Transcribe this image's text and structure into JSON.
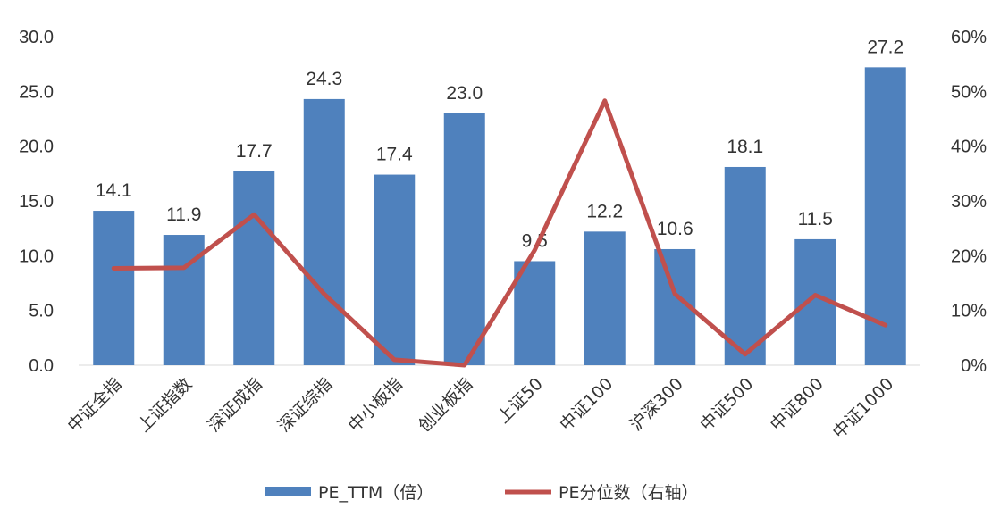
{
  "chart_data": {
    "type": "bar+line",
    "categories": [
      "中证全指",
      "上证指数",
      "深证成指",
      "深证综指",
      "中小板指",
      "创业板指",
      "上证50",
      "中证100",
      "沪深300",
      "中证500",
      "中证800",
      "中证1000"
    ],
    "series": [
      {
        "name": "PE_TTM（倍）",
        "type": "bar",
        "axis": "left",
        "color": "#4F81BD",
        "values": [
          14.1,
          11.9,
          17.7,
          24.3,
          17.4,
          23.0,
          9.5,
          12.2,
          10.6,
          18.1,
          11.5,
          27.2
        ],
        "labels": [
          "14.1",
          "11.9",
          "17.7",
          "24.3",
          "17.4",
          "23.0",
          "9.5",
          "12.2",
          "10.6",
          "18.1",
          "11.5",
          "27.2"
        ]
      },
      {
        "name": "PE分位数（右轴）",
        "type": "line",
        "axis": "right",
        "color": "#C0504D",
        "values": [
          0.177,
          0.178,
          0.275,
          0.13,
          0.01,
          0.0,
          0.21,
          0.483,
          0.13,
          0.02,
          0.128,
          0.073
        ]
      }
    ],
    "y_left": {
      "min": 0,
      "max": 30,
      "ticks": [
        "0.0",
        "5.0",
        "10.0",
        "15.0",
        "20.0",
        "25.0",
        "30.0"
      ]
    },
    "y_right": {
      "min": 0,
      "max": 0.6,
      "ticks": [
        "0%",
        "10%",
        "20%",
        "30%",
        "40%",
        "50%",
        "60%"
      ]
    },
    "grid": false,
    "legend_position": "bottom"
  }
}
